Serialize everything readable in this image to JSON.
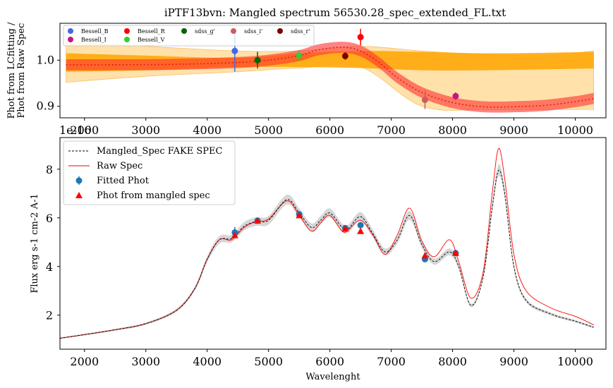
{
  "top_title": "iPTF13bvn: Mangled spectrum 56530.28_spec_extended_FL.txt",
  "offset_text": "1e-16",
  "chart_data": [
    {
      "type": "scatter",
      "title": "iPTF13bvn: Mangled spectrum 56530.28_spec_extended_FL.txt",
      "ylabel": "Phot from LCfitting / Phot from Raw Spec",
      "xlabel": "",
      "xlim": [
        1600,
        10500
      ],
      "ylim": [
        0.875,
        1.08
      ],
      "xticks": [
        2000,
        3000,
        4000,
        5000,
        6000,
        7000,
        8000,
        9000,
        10000
      ],
      "yticks": [
        0.9,
        1.0
      ],
      "legend_position": "top-left",
      "points": [
        {
          "name": "Bessell_B",
          "x": 4450,
          "y": 1.02,
          "err": 0.045,
          "color": "#4169e1"
        },
        {
          "name": "Bessell_I",
          "x": 8050,
          "y": 0.922,
          "err": 0.008,
          "color": "#c71585"
        },
        {
          "name": "Bessell_R",
          "x": 6500,
          "y": 1.05,
          "err": 0.018,
          "color": "#ff0000"
        },
        {
          "name": "Bessell_V",
          "x": 5500,
          "y": 1.01,
          "err": 0.012,
          "color": "#32cd32"
        },
        {
          "name": "sdss_g'",
          "x": 4820,
          "y": 1.0,
          "err": 0.018,
          "color": "#006400"
        },
        {
          "name": "sdss_i'",
          "x": 7550,
          "y": 0.914,
          "err": 0.02,
          "color": "#cd5c5c"
        },
        {
          "name": "sdss_r'",
          "x": 6250,
          "y": 1.009,
          "err": 0.008,
          "color": "#800000"
        }
      ],
      "fit_curve": {
        "x": [
          1700,
          2500,
          3500,
          4500,
          5000,
          5500,
          5800,
          6200,
          6500,
          6800,
          7100,
          7500,
          8000,
          8500,
          9000,
          9500,
          10000,
          10300
        ],
        "y": [
          0.99,
          0.99,
          0.991,
          0.995,
          1.0,
          1.01,
          1.022,
          1.028,
          1.02,
          0.995,
          0.962,
          0.93,
          0.908,
          0.899,
          0.899,
          0.902,
          0.91,
          0.917
        ],
        "color": "#e31a1c"
      },
      "orange_band": {
        "x": [
          1700,
          3000,
          4500,
          5500,
          6500,
          7500,
          8500,
          9500,
          10300
        ],
        "lower": [
          0.975,
          0.978,
          0.985,
          0.985,
          0.983,
          0.978,
          0.978,
          0.98,
          0.982
        ],
        "upper": [
          1.015,
          1.01,
          1.005,
          1.015,
          1.02,
          1.018,
          1.015,
          1.016,
          1.018
        ],
        "color": "#ffa500"
      },
      "light_band": {
        "x": [
          1700,
          3000,
          4500,
          5500,
          6500,
          7500,
          8500,
          9500,
          10300
        ],
        "lower": [
          0.952,
          0.965,
          0.975,
          0.983,
          0.985,
          0.9,
          0.893,
          0.893,
          0.893
        ],
        "upper": [
          1.04,
          1.03,
          1.02,
          1.02,
          1.03,
          1.02,
          1.012,
          1.01,
          1.02
        ],
        "color": "#ffd78c"
      }
    },
    {
      "type": "line",
      "title": "",
      "xlabel": "Wavelenght",
      "ylabel": "Flux erg s-1 cm-2 A-1",
      "xlim": [
        1600,
        10500
      ],
      "ylim": [
        0.6,
        9.3
      ],
      "xticks": [
        2000,
        3000,
        4000,
        5000,
        6000,
        7000,
        8000,
        9000,
        10000
      ],
      "yticks": [
        2,
        4,
        6,
        8
      ],
      "legend_position": "upper left",
      "series": [
        {
          "name": "Mangled_Spec FAKE SPEC",
          "style": "dashed",
          "color": "#000000",
          "x": [
            1600,
            2000,
            2500,
            3000,
            3500,
            3800,
            4000,
            4200,
            4400,
            4600,
            4800,
            5000,
            5300,
            5500,
            5700,
            5850,
            6000,
            6200,
            6300,
            6500,
            6700,
            6900,
            7100,
            7300,
            7500,
            7700,
            7950,
            8100,
            8300,
            8500,
            8650,
            8750,
            8850,
            9000,
            9200,
            9600,
            10000,
            10300
          ],
          "y": [
            1.05,
            1.2,
            1.4,
            1.65,
            2.2,
            3.1,
            4.3,
            5.1,
            5.15,
            5.65,
            5.85,
            5.9,
            6.75,
            6.2,
            5.6,
            5.9,
            6.2,
            5.6,
            5.55,
            6.05,
            5.35,
            4.6,
            5.1,
            6.1,
            4.9,
            4.2,
            4.6,
            4.0,
            2.4,
            3.6,
            6.5,
            7.95,
            7.0,
            4.0,
            2.6,
            2.05,
            1.75,
            1.5
          ]
        },
        {
          "name": "Raw Spec",
          "style": "solid",
          "color": "#ff0000",
          "x": [
            1600,
            2000,
            2500,
            3000,
            3500,
            3800,
            4000,
            4200,
            4400,
            4600,
            4800,
            5000,
            5300,
            5500,
            5700,
            5850,
            6000,
            6200,
            6300,
            6500,
            6700,
            6900,
            7100,
            7300,
            7500,
            7700,
            7950,
            8100,
            8300,
            8500,
            8650,
            8750,
            8850,
            9000,
            9200,
            9600,
            10000,
            10300
          ],
          "y": [
            1.05,
            1.2,
            1.4,
            1.65,
            2.2,
            3.1,
            4.3,
            5.1,
            5.1,
            5.6,
            5.85,
            5.95,
            6.7,
            6.1,
            5.45,
            5.8,
            6.1,
            5.45,
            5.5,
            5.9,
            5.3,
            4.5,
            5.3,
            6.4,
            5.05,
            4.4,
            5.1,
            4.2,
            2.7,
            3.8,
            7.1,
            8.85,
            7.6,
            4.5,
            3.0,
            2.3,
            1.95,
            1.6
          ]
        }
      ],
      "fitted_phot": {
        "name": "Fitted Phot",
        "color": "#1f77b4",
        "x": [
          4450,
          4820,
          5500,
          6250,
          6500,
          7550,
          8050
        ],
        "y": [
          5.4,
          5.88,
          6.15,
          5.58,
          5.7,
          4.3,
          4.55
        ],
        "err": [
          0.22,
          0.08,
          0.1,
          0.06,
          0.07,
          0.1,
          0.06
        ]
      },
      "phot_from_mangled": {
        "name": "Phot from mangled spec",
        "color": "#ff0000",
        "x": [
          4450,
          4820,
          5500,
          6250,
          6500,
          7550,
          8050
        ],
        "y": [
          5.28,
          5.88,
          6.1,
          5.55,
          5.45,
          4.45,
          4.55
        ]
      }
    }
  ]
}
